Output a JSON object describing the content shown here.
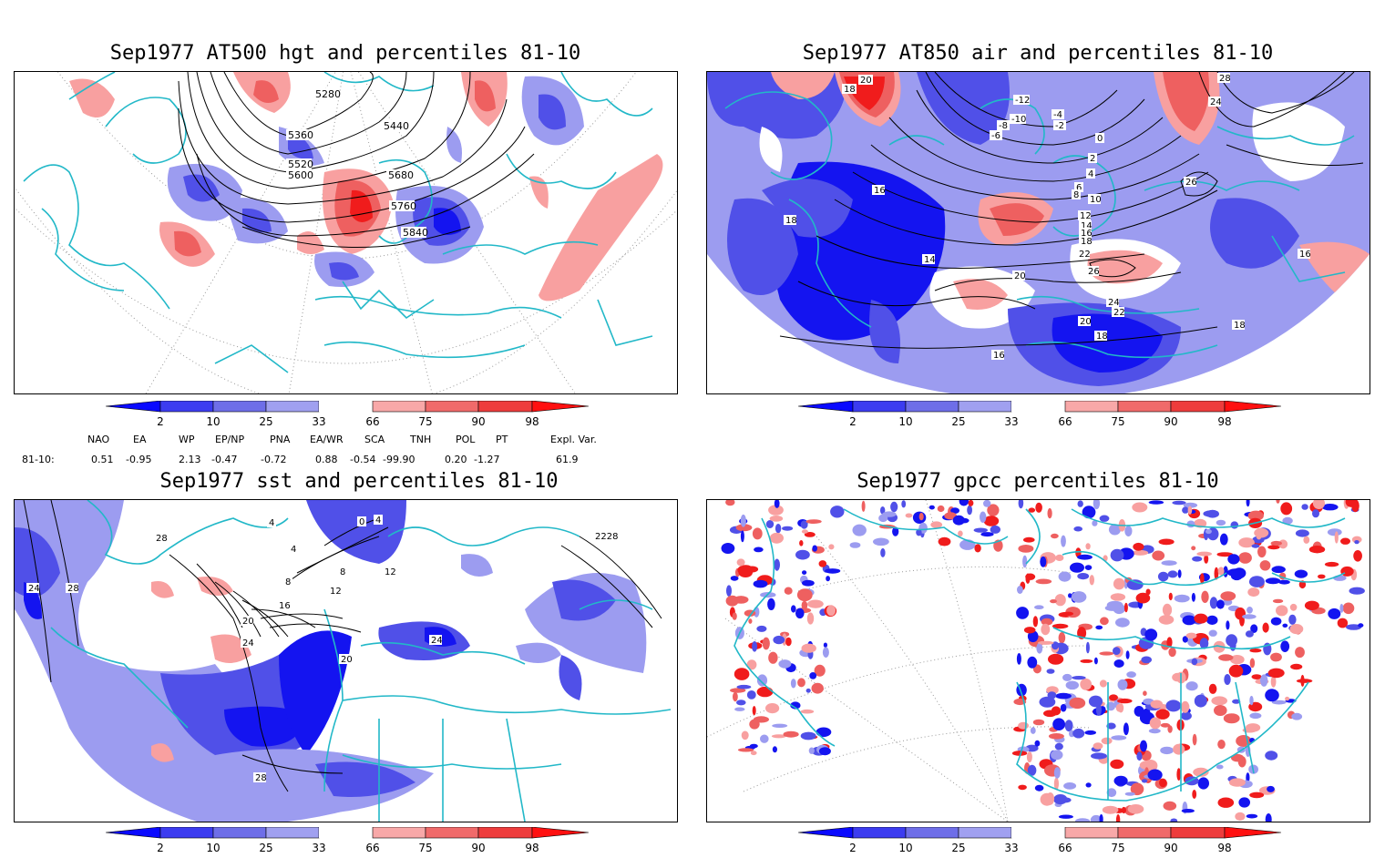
{
  "panels": {
    "p1": {
      "title": "Sep1977 AT500 hgt and percentiles 81-10",
      "contour_labels": [
        "5280",
        "5360",
        "5440",
        "5520",
        "5600",
        "5680",
        "5760",
        "5840"
      ]
    },
    "p2": {
      "title": "Sep1977 AT850 air and percentiles 81-10",
      "contour_labels": [
        "20",
        "18",
        "-12",
        "-10",
        "-8",
        "-6",
        "-4",
        "-2",
        "0",
        "2",
        "4",
        "6",
        "8",
        "10",
        "12",
        "14",
        "16",
        "18",
        "22",
        "24",
        "26",
        "28",
        "20",
        "22",
        "24",
        "26",
        "14",
        "16",
        "18",
        "16",
        "18",
        "20",
        "18",
        "16"
      ]
    },
    "p3": {
      "title": "Sep1977 sst and percentiles 81-10",
      "contour_labels": [
        "28",
        "24",
        "28",
        "4",
        "8",
        "12",
        "16",
        "20",
        "24",
        "20",
        "24",
        "28",
        "2228",
        "0",
        "4",
        "12",
        "8",
        "4"
      ]
    },
    "p4": {
      "title": "Sep1977 gpcc percentiles 81-10"
    }
  },
  "colorbar": {
    "labels": [
      "2",
      "10",
      "25",
      "33",
      "66",
      "75",
      "90",
      "98"
    ],
    "colors": [
      "#0a0aff",
      "#3c3cf0",
      "#6e6ee8",
      "#a0a0f0",
      "#ffffff",
      "#f8a8a8",
      "#f06a6a",
      "#ee3c3c",
      "#ff1010"
    ]
  },
  "indices": {
    "row_label": "81-10:",
    "headers": [
      "NAO",
      "EA",
      "WP",
      "EP/NP",
      "PNA",
      "EA/WR",
      "SCA",
      "TNH",
      "POL",
      "PT",
      "Expl. Var."
    ],
    "values": [
      "0.51",
      "-0.95",
      "2.13",
      "-0.47",
      "-0.72",
      "0.88",
      "-0.54",
      "-99.90",
      "0.20",
      "-1.27",
      "61.9"
    ]
  },
  "colors": {
    "coast": "#22b8c8",
    "grid": "#9a9a9a",
    "contour": "#000000",
    "blue_dark": "#1414f0",
    "blue_mid": "#5050e8",
    "blue_light": "#9c9cf0",
    "red_light": "#f8a0a0",
    "red_mid": "#ee6060",
    "red_dark": "#f01c1c"
  }
}
